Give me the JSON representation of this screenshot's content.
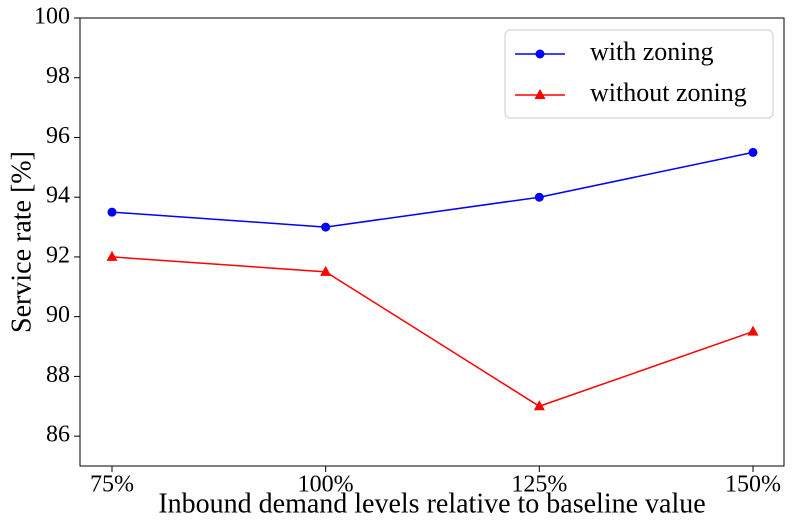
{
  "chart_data": {
    "type": "line",
    "categories": [
      "75%",
      "100%",
      "125%",
      "150%"
    ],
    "series": [
      {
        "name": "with zoning",
        "color": "#0000ff",
        "marker": "circle",
        "values": [
          93.5,
          93,
          94,
          95.5
        ]
      },
      {
        "name": "without zoning",
        "color": "#ff0000",
        "marker": "triangle",
        "values": [
          92,
          91.5,
          87,
          89.5
        ]
      }
    ],
    "x_label": "Inbound demand levels relative to baseline value",
    "y_label": "Service rate [%]",
    "ylim": [
      85,
      100
    ],
    "yticks": [
      86,
      88,
      90,
      92,
      94,
      96,
      98,
      100
    ],
    "grid": false,
    "legend": "upper right"
  }
}
